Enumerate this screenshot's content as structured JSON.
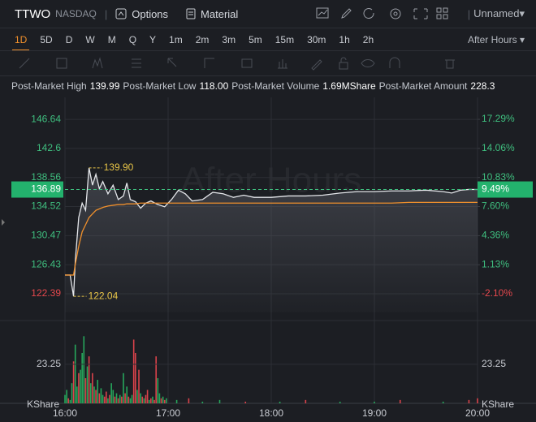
{
  "toolbar": {
    "symbol": "TTWO",
    "exchange": "NASDAQ",
    "tabs": [
      "Options",
      "Material"
    ],
    "layout": "Unnamed"
  },
  "periods": [
    "1D",
    "5D",
    "D",
    "W",
    "M",
    "Q",
    "Y",
    "1m",
    "2m",
    "3m",
    "5m",
    "15m",
    "30m",
    "1h",
    "2h"
  ],
  "session": "After Hours",
  "stats": [
    {
      "label": "Post-Market High",
      "value": "139.99"
    },
    {
      "label": "Post-Market Low",
      "value": "118.00"
    },
    {
      "label": "Post-Market Volume",
      "value": "1.69MShare"
    },
    {
      "label": "Post-Market Amount",
      "value": "228.3"
    }
  ],
  "chart_data": {
    "type": "line",
    "watermark": "After Hours",
    "x": [
      "16:00",
      "16:03",
      "16:05",
      "16:06",
      "16:08",
      "16:10",
      "16:12",
      "16:14",
      "16:16",
      "16:18",
      "16:20",
      "16:22",
      "16:25",
      "16:28",
      "16:31",
      "16:34",
      "16:36",
      "16:38",
      "16:41",
      "16:44",
      "16:47",
      "16:50",
      "16:54",
      "16:58",
      "17:02",
      "17:06",
      "17:10",
      "17:14",
      "17:20",
      "17:26",
      "17:32",
      "17:38",
      "17:44",
      "17:50",
      "18:00",
      "18:10",
      "18:20",
      "18:30",
      "18:40",
      "18:50",
      "19:00",
      "19:10",
      "19:20",
      "19:30",
      "19:40",
      "19:45",
      "19:50",
      "19:55",
      "20:00"
    ],
    "series": [
      {
        "color": "#e4e6ea",
        "values": [
          125,
          125,
          122.04,
          127,
          133,
          135,
          134,
          139.9,
          137.5,
          139,
          137,
          138,
          136.3,
          137.5,
          135.5,
          136,
          137.8,
          135.5,
          135.2,
          134.3,
          135,
          135.3,
          134.8,
          134.5,
          135.5,
          136.8,
          136.3,
          135.3,
          135.5,
          136.5,
          136.3,
          135.8,
          136.1,
          135.8,
          135.8,
          136,
          136,
          136.1,
          136.4,
          136.6,
          136.6,
          136.7,
          136.7,
          136.8,
          136.6,
          136.4,
          136.8,
          136.9,
          136.89
        ]
      },
      {
        "color": "#f0902c",
        "values": [
          125,
          125,
          125,
          126.5,
          129,
          131,
          132,
          133,
          133.5,
          134,
          134.2,
          134.4,
          134.6,
          134.7,
          134.8,
          134.8,
          134.9,
          134.9,
          134.9,
          135,
          135,
          135,
          135,
          135,
          135,
          135,
          135,
          135,
          135,
          135,
          135,
          135,
          135,
          135,
          135,
          135,
          135,
          135,
          135,
          135,
          135,
          135,
          135.1,
          135.1,
          135.1,
          135.1,
          135.1,
          135.1,
          135.1
        ]
      }
    ],
    "xlim": [
      "16:00",
      "20:00"
    ],
    "xticks": [
      "16:00",
      "17:00",
      "18:00",
      "19:00",
      "20:00"
    ],
    "ylim": [
      119.8,
      149.7
    ],
    "yticks": [
      146.64,
      142.6,
      138.56,
      134.52,
      130.47,
      126.43,
      122.39
    ],
    "y2lim": [
      -4.17,
      19.73
    ],
    "y2ticks": [
      {
        "value": 17.29,
        "label": "17.29%"
      },
      {
        "value": 14.06,
        "label": "14.06%"
      },
      {
        "value": 10.83,
        "label": "10.83%"
      },
      {
        "value": 7.6,
        "label": "7.60%"
      },
      {
        "value": 4.36,
        "label": "4.36%"
      },
      {
        "value": 1.13,
        "label": "1.13%"
      },
      {
        "value": -2.1,
        "label": "-2.10%"
      }
    ],
    "up_color": "#3fbf7f",
    "down_color": "#e5484d",
    "last": 136.89,
    "last_change": {
      "value": 9.49,
      "label": "9.49%"
    },
    "annotations": [
      {
        "x": "16:14",
        "value": 139.9,
        "label": "139.90"
      },
      {
        "x": "16:05",
        "value": 122.04,
        "label": "122.04"
      }
    ],
    "annotation_color": "#e8c547",
    "volume": {
      "unit": "KShare",
      "ylim": [
        0,
        44.5
      ],
      "yticks": [
        23.25
      ],
      "x": [
        "16:00",
        "16:01",
        "16:02",
        "16:03",
        "16:04",
        "16:05",
        "16:06",
        "16:07",
        "16:08",
        "16:09",
        "16:10",
        "16:11",
        "16:12",
        "16:13",
        "16:14",
        "16:15",
        "16:16",
        "16:17",
        "16:18",
        "16:19",
        "16:20",
        "16:21",
        "16:22",
        "16:23",
        "16:24",
        "16:25",
        "16:26",
        "16:27",
        "16:28",
        "16:29",
        "16:30",
        "16:31",
        "16:32",
        "16:33",
        "16:34",
        "16:35",
        "16:36",
        "16:37",
        "16:38",
        "16:39",
        "16:40",
        "16:41",
        "16:42",
        "16:43",
        "16:44",
        "16:45",
        "16:46",
        "16:47",
        "16:48",
        "16:49",
        "16:50",
        "16:51",
        "16:52",
        "16:53",
        "16:54",
        "16:55",
        "16:56",
        "16:57",
        "16:58",
        "16:59",
        "17:05",
        "17:12",
        "17:20",
        "17:30",
        "17:45",
        "18:05",
        "18:20",
        "18:40",
        "19:00",
        "19:15",
        "19:40",
        "19:55",
        "20:00"
      ],
      "values": [
        5,
        8,
        3,
        2,
        12,
        25,
        35,
        10,
        18,
        20,
        30,
        40,
        15,
        22,
        28,
        12,
        18,
        10,
        8,
        14,
        6,
        9,
        5,
        4,
        7,
        3,
        5,
        12,
        8,
        4,
        6,
        3,
        5,
        4,
        18,
        6,
        10,
        4,
        3,
        5,
        38,
        30,
        8,
        20,
        6,
        4,
        3,
        5,
        8,
        2,
        3,
        4,
        2,
        28,
        15,
        6,
        3,
        4,
        2,
        3,
        2,
        3,
        1,
        2,
        1,
        1,
        2,
        1,
        1,
        2,
        1,
        2,
        3
      ],
      "colors": [
        "#26a65b",
        "#26a65b",
        "#d9434b",
        "#26a65b",
        "#26a65b",
        "#d9434b",
        "#26a65b",
        "#26a65b",
        "#d9434b",
        "#26a65b",
        "#26a65b",
        "#26a65b",
        "#d9434b",
        "#26a65b",
        "#d9434b",
        "#26a65b",
        "#d9434b",
        "#26a65b",
        "#d9434b",
        "#26a65b",
        "#d9434b",
        "#26a65b",
        "#26a65b",
        "#d9434b",
        "#d9434b",
        "#26a65b",
        "#d9434b",
        "#26a65b",
        "#26a65b",
        "#d9434b",
        "#26a65b",
        "#d9434b",
        "#26a65b",
        "#d9434b",
        "#26a65b",
        "#d9434b",
        "#26a65b",
        "#d9434b",
        "#26a65b",
        "#26a65b",
        "#d9434b",
        "#d9434b",
        "#26a65b",
        "#d9434b",
        "#26a65b",
        "#d9434b",
        "#26a65b",
        "#d9434b",
        "#d9434b",
        "#26a65b",
        "#d9434b",
        "#26a65b",
        "#d9434b",
        "#d9434b",
        "#26a65b",
        "#26a65b",
        "#d9434b",
        "#26a65b",
        "#d9434b",
        "#26a65b",
        "#26a65b",
        "#d9434b",
        "#26a65b",
        "#26a65b",
        "#d9434b",
        "#26a65b",
        "#d9434b",
        "#26a65b",
        "#26a65b",
        "#d9434b",
        "#26a65b",
        "#d9434b",
        "#d9434b"
      ]
    }
  }
}
